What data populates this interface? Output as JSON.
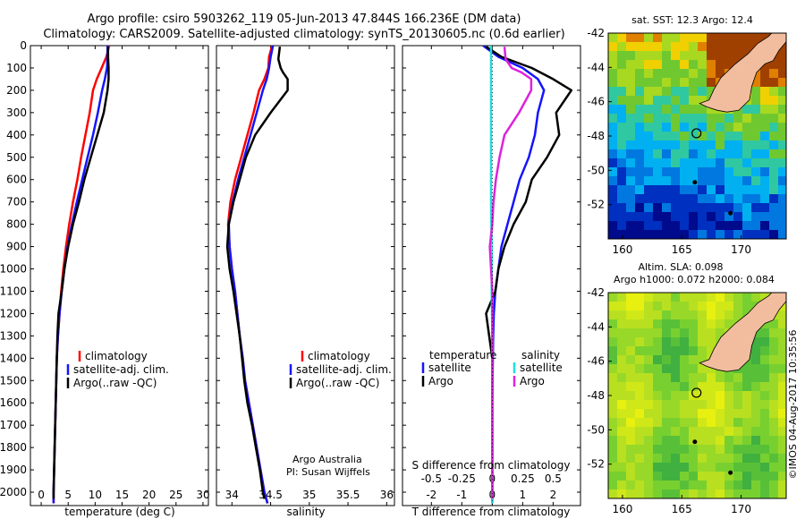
{
  "header": {
    "line1": "Argo profile: csiro 5903262_119 05-Jun-2013 47.844S 166.236E (DM data)",
    "line2": "Climatology: CARS2009. Satellite-adjusted climatology: synTS_20130605.nc (0.6d earlier)"
  },
  "legend_labels": {
    "climatology": "climatology",
    "satellite_adj": "satellite-adj. clim.",
    "argo_raw": "Argo(..raw -QC)",
    "temperature": "temperature",
    "salinity": "salinity",
    "satellite": "satellite",
    "argo": "Argo"
  },
  "credits": {
    "line1": "Argo Australia",
    "line2": "PI: Susan Wijffels"
  },
  "map_labels": {
    "sst": "sat. SST: 12.3 Argo: 12.4",
    "sla": "Altim. SLA: 0.098",
    "h": "Argo h1000: 0.072 h2000: 0.084",
    "timestamp": "©IMOS 04-Aug-2017 10:35:56"
  },
  "colors": {
    "climatology": "#ff0000",
    "satellite": "#1414ff",
    "argo": "#000000",
    "s_satellite": "#22dddd",
    "s_argo": "#dd22dd",
    "land": "#f2bd9f"
  },
  "chart_data": [
    {
      "type": "line",
      "xlabel": "temperature (deg C)",
      "ylim": [
        2060,
        0
      ],
      "y_ticks": [
        0,
        100,
        200,
        300,
        400,
        500,
        600,
        700,
        800,
        900,
        1000,
        1100,
        1200,
        1300,
        1400,
        1500,
        1600,
        1700,
        1800,
        1900,
        2000
      ],
      "xlim": [
        -2,
        31
      ],
      "x_ticks": [
        0,
        5,
        10,
        15,
        20,
        25,
        30
      ],
      "series": [
        {
          "name": "climatology",
          "color_key": "climatology",
          "points": [
            [
              12.6,
              0
            ],
            [
              12.1,
              50
            ],
            [
              11.2,
              100
            ],
            [
              10.3,
              150
            ],
            [
              9.6,
              200
            ],
            [
              9.0,
              300
            ],
            [
              8.2,
              400
            ],
            [
              7.4,
              500
            ],
            [
              6.7,
              600
            ],
            [
              5.9,
              700
            ],
            [
              5.2,
              800
            ],
            [
              4.6,
              900
            ],
            [
              4.1,
              1000
            ],
            [
              3.7,
              1100
            ],
            [
              3.4,
              1200
            ],
            [
              3.1,
              1300
            ],
            [
              2.9,
              1400
            ],
            [
              2.8,
              1500
            ],
            [
              2.7,
              1600
            ],
            [
              2.6,
              1700
            ],
            [
              2.5,
              1800
            ],
            [
              2.4,
              1900
            ],
            [
              2.3,
              2000
            ],
            [
              2.3,
              2050
            ]
          ]
        },
        {
          "name": "satellite-adj. clim.",
          "color_key": "satellite",
          "points": [
            [
              12.3,
              0
            ],
            [
              12.3,
              50
            ],
            [
              12.2,
              100
            ],
            [
              11.8,
              150
            ],
            [
              11.3,
              200
            ],
            [
              10.5,
              300
            ],
            [
              9.6,
              400
            ],
            [
              8.6,
              500
            ],
            [
              7.6,
              600
            ],
            [
              6.6,
              700
            ],
            [
              5.7,
              800
            ],
            [
              4.9,
              900
            ],
            [
              4.3,
              1000
            ],
            [
              3.8,
              1100
            ],
            [
              3.4,
              1200
            ],
            [
              3.1,
              1300
            ],
            [
              2.9,
              1400
            ],
            [
              2.8,
              1500
            ],
            [
              2.7,
              1600
            ],
            [
              2.6,
              1700
            ],
            [
              2.5,
              1800
            ],
            [
              2.4,
              1900
            ],
            [
              2.3,
              2000
            ],
            [
              2.3,
              2050
            ]
          ]
        },
        {
          "name": "Argo(..raw -QC)",
          "color_key": "argo",
          "points": [
            [
              12.4,
              5
            ],
            [
              12.4,
              50
            ],
            [
              12.5,
              100
            ],
            [
              12.5,
              150
            ],
            [
              12.3,
              200
            ],
            [
              11.6,
              300
            ],
            [
              10.4,
              400
            ],
            [
              9.2,
              500
            ],
            [
              8.0,
              600
            ],
            [
              7.0,
              700
            ],
            [
              5.9,
              800
            ],
            [
              5.0,
              900
            ],
            [
              4.3,
              1000
            ],
            [
              3.8,
              1100
            ],
            [
              3.2,
              1200
            ],
            [
              3.0,
              1300
            ],
            [
              2.9,
              1400
            ],
            [
              2.8,
              1500
            ],
            [
              2.7,
              1600
            ],
            [
              2.6,
              1700
            ],
            [
              2.5,
              1800
            ],
            [
              2.4,
              1900
            ],
            [
              2.3,
              2000
            ],
            [
              2.3,
              2030
            ]
          ]
        }
      ]
    },
    {
      "type": "line",
      "xlabel": "salinity",
      "ylim": [
        2060,
        0
      ],
      "xlim": [
        33.8,
        36.1
      ],
      "x_ticks": [
        34,
        34.5,
        35,
        35.5,
        36
      ],
      "series": [
        {
          "name": "climatology",
          "color_key": "climatology",
          "points": [
            [
              34.52,
              0
            ],
            [
              34.48,
              50
            ],
            [
              34.47,
              100
            ],
            [
              34.42,
              150
            ],
            [
              34.35,
              200
            ],
            [
              34.28,
              300
            ],
            [
              34.2,
              400
            ],
            [
              34.12,
              500
            ],
            [
              34.04,
              600
            ],
            [
              33.98,
              700
            ],
            [
              33.95,
              800
            ],
            [
              33.97,
              900
            ],
            [
              34.0,
              1000
            ],
            [
              34.04,
              1100
            ],
            [
              34.07,
              1200
            ],
            [
              34.1,
              1300
            ],
            [
              34.14,
              1400
            ],
            [
              34.17,
              1500
            ],
            [
              34.22,
              1600
            ],
            [
              34.27,
              1700
            ],
            [
              34.32,
              1800
            ],
            [
              34.37,
              1900
            ],
            [
              34.42,
              2000
            ],
            [
              34.46,
              2050
            ]
          ]
        },
        {
          "name": "satellite-adj. clim.",
          "color_key": "satellite",
          "points": [
            [
              34.53,
              0
            ],
            [
              34.5,
              50
            ],
            [
              34.48,
              100
            ],
            [
              34.45,
              150
            ],
            [
              34.4,
              200
            ],
            [
              34.32,
              300
            ],
            [
              34.24,
              400
            ],
            [
              34.16,
              500
            ],
            [
              34.08,
              600
            ],
            [
              34.01,
              700
            ],
            [
              33.96,
              800
            ],
            [
              33.97,
              900
            ],
            [
              34.0,
              1000
            ],
            [
              34.04,
              1100
            ],
            [
              34.07,
              1200
            ],
            [
              34.1,
              1300
            ],
            [
              34.14,
              1400
            ],
            [
              34.17,
              1500
            ],
            [
              34.22,
              1600
            ],
            [
              34.27,
              1700
            ],
            [
              34.32,
              1800
            ],
            [
              34.37,
              1900
            ],
            [
              34.42,
              2000
            ],
            [
              34.46,
              2050
            ]
          ]
        },
        {
          "name": "Argo(..raw -QC)",
          "color_key": "argo",
          "points": [
            [
              34.62,
              5
            ],
            [
              34.6,
              60
            ],
            [
              34.63,
              100
            ],
            [
              34.66,
              120
            ],
            [
              34.72,
              150
            ],
            [
              34.72,
              200
            ],
            [
              34.5,
              300
            ],
            [
              34.3,
              400
            ],
            [
              34.18,
              500
            ],
            [
              34.1,
              600
            ],
            [
              34.02,
              700
            ],
            [
              33.96,
              800
            ],
            [
              33.94,
              900
            ],
            [
              33.97,
              1000
            ],
            [
              34.02,
              1100
            ],
            [
              34.06,
              1200
            ],
            [
              34.1,
              1300
            ],
            [
              34.13,
              1400
            ],
            [
              34.16,
              1500
            ],
            [
              34.2,
              1600
            ],
            [
              34.26,
              1700
            ],
            [
              34.31,
              1800
            ],
            [
              34.36,
              1900
            ],
            [
              34.4,
              2000
            ],
            [
              34.42,
              2030
            ]
          ]
        }
      ]
    },
    {
      "type": "line",
      "xlabel": "T difference from climatology",
      "xlabel_top": "S difference from climatology",
      "ylim": [
        2060,
        0
      ],
      "xlim": [
        -2.95,
        2.9
      ],
      "x_ticks": [
        -2,
        -1,
        0,
        1,
        2
      ],
      "x_ticks_top": [
        -0.5,
        -0.25,
        0,
        0.25,
        0.5
      ],
      "x_ticks_top_labels": [
        "-0.5",
        "-0.25",
        "0",
        "0.25",
        "0.5"
      ],
      "s_scale": 4,
      "series": [
        {
          "name": "satellite",
          "group": "temperature",
          "color_key": "satellite",
          "points": [
            [
              -0.3,
              0
            ],
            [
              0.2,
              50
            ],
            [
              1.0,
              100
            ],
            [
              1.5,
              150
            ],
            [
              1.7,
              200
            ],
            [
              1.5,
              300
            ],
            [
              1.4,
              400
            ],
            [
              1.2,
              500
            ],
            [
              0.9,
              600
            ],
            [
              0.7,
              700
            ],
            [
              0.5,
              800
            ],
            [
              0.3,
              900
            ],
            [
              0.2,
              1000
            ],
            [
              0.1,
              1100
            ],
            [
              0.05,
              1200
            ],
            [
              0.03,
              1300
            ],
            [
              0.02,
              1400
            ],
            [
              0.01,
              1500
            ],
            [
              0,
              1600
            ],
            [
              0,
              1700
            ],
            [
              0,
              1800
            ],
            [
              0,
              1900
            ],
            [
              0,
              2000
            ],
            [
              0,
              2050
            ]
          ]
        },
        {
          "name": "Argo",
          "group": "temperature",
          "color_key": "argo",
          "points": [
            [
              -0.2,
              5
            ],
            [
              0.3,
              50
            ],
            [
              1.3,
              100
            ],
            [
              2.0,
              150
            ],
            [
              2.6,
              200
            ],
            [
              2.1,
              300
            ],
            [
              2.2,
              400
            ],
            [
              1.8,
              500
            ],
            [
              1.3,
              600
            ],
            [
              1.1,
              700
            ],
            [
              0.7,
              800
            ],
            [
              0.4,
              900
            ],
            [
              0.2,
              1000
            ],
            [
              0.1,
              1100
            ],
            [
              -0.2,
              1200
            ],
            [
              -0.1,
              1300
            ],
            [
              0,
              1400
            ],
            [
              0,
              1500
            ],
            [
              0,
              1600
            ],
            [
              0,
              1700
            ],
            [
              0,
              1800
            ],
            [
              0,
              1900
            ],
            [
              0,
              2000
            ],
            [
              0,
              2030
            ]
          ]
        },
        {
          "name": "satellite",
          "group": "salinity",
          "color_key": "s_satellite",
          "points": [
            [
              -0.01,
              0
            ],
            [
              -0.01,
              100
            ],
            [
              -0.01,
              200
            ],
            [
              -0.01,
              300
            ],
            [
              -0.01,
              400
            ],
            [
              -0.01,
              500
            ],
            [
              -0.01,
              700
            ],
            [
              -0.005,
              900
            ],
            [
              -0.005,
              1100
            ],
            [
              0,
              1300
            ],
            [
              0,
              1500
            ],
            [
              0,
              1700
            ],
            [
              0,
              1900
            ],
            [
              0,
              2050
            ]
          ]
        },
        {
          "name": "Argo",
          "group": "salinity",
          "color_key": "s_argo",
          "points": [
            [
              0.1,
              5
            ],
            [
              0.11,
              60
            ],
            [
              0.16,
              100
            ],
            [
              0.24,
              120
            ],
            [
              0.32,
              150
            ],
            [
              0.32,
              200
            ],
            [
              0.22,
              300
            ],
            [
              0.1,
              400
            ],
            [
              0.06,
              500
            ],
            [
              0.03,
              600
            ],
            [
              0.01,
              700
            ],
            [
              0.0,
              800
            ],
            [
              -0.02,
              900
            ],
            [
              -0.01,
              1000
            ],
            [
              0,
              1100
            ],
            [
              0,
              1200
            ],
            [
              0,
              1400
            ],
            [
              0,
              1600
            ],
            [
              0,
              1800
            ],
            [
              0,
              2000
            ],
            [
              0,
              2030
            ]
          ]
        }
      ]
    },
    {
      "type": "heatmap",
      "title": "sat. SST: 12.3 Argo: 12.4",
      "xlim": [
        158.8,
        173.8
      ],
      "ylim": [
        -54,
        -42
      ],
      "x_ticks": [
        160,
        165,
        170
      ],
      "y_ticks": [
        -42,
        -44,
        -46,
        -48,
        -50,
        -52
      ],
      "argo_position": [
        166.24,
        -47.84
      ]
    },
    {
      "type": "heatmap",
      "title": "Altim. SLA: 0.098",
      "subtitle": "Argo h1000: 0.072 h2000: 0.084",
      "xlim": [
        158.8,
        173.8
      ],
      "ylim": [
        -54,
        -42
      ],
      "x_ticks": [
        160,
        165,
        170
      ],
      "y_ticks": [
        -42,
        -44,
        -46,
        -48,
        -50,
        -52
      ],
      "argo_position": [
        166.24,
        -47.84
      ]
    }
  ]
}
